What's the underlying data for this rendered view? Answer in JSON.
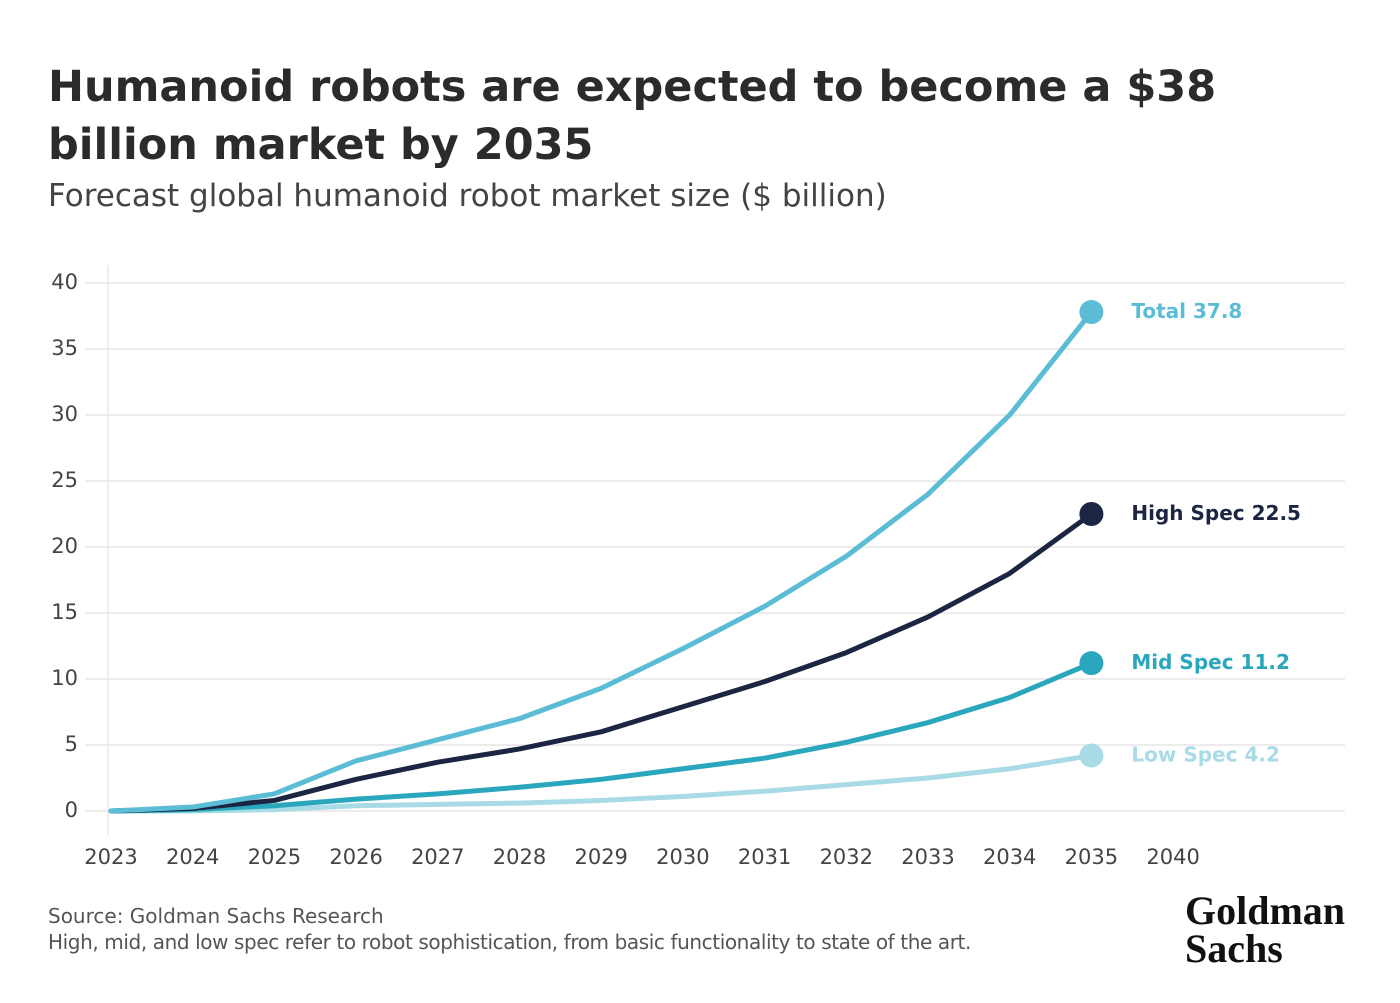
{
  "chart_data": {
    "type": "line",
    "title": "Humanoid robots are expected to become a $38 billion market by 2035",
    "subtitle": "Forecast global humanoid robot market size ($ billion)",
    "categories": [
      "2023",
      "2024",
      "2025",
      "2026",
      "2027",
      "2028",
      "2029",
      "2030",
      "2031",
      "2032",
      "2033",
      "2034",
      "2035",
      "2040"
    ],
    "series": [
      {
        "name": "Total",
        "color": "#5bbcd6",
        "values": [
          0,
          0.3,
          1.3,
          3.8,
          5.4,
          7.0,
          9.3,
          12.3,
          15.5,
          19.3,
          24.0,
          30.0,
          37.8,
          null
        ]
      },
      {
        "name": "High Spec",
        "color": "#1c2541",
        "values": [
          0,
          0.2,
          0.8,
          2.4,
          3.7,
          4.7,
          6.0,
          7.9,
          9.8,
          12.0,
          14.7,
          18.0,
          22.5,
          null
        ]
      },
      {
        "name": "Mid Spec",
        "color": "#2aa7bd",
        "values": [
          0,
          0.1,
          0.4,
          0.9,
          1.3,
          1.8,
          2.4,
          3.2,
          4.0,
          5.2,
          6.7,
          8.6,
          11.2,
          null
        ]
      },
      {
        "name": "Low Spec",
        "color": "#a8dbe6",
        "values": [
          0,
          0,
          0.1,
          0.4,
          0.5,
          0.6,
          0.8,
          1.1,
          1.5,
          2.0,
          2.5,
          3.2,
          4.2,
          null
        ]
      }
    ],
    "ylim": [
      0,
      40
    ],
    "yticks": [
      0,
      5,
      10,
      15,
      20,
      25,
      30,
      35,
      40
    ],
    "grid": true,
    "source": "Source: Goldman Sachs Research",
    "note": "High, mid, and low spec refer to robot sophistication, from basic functionality to state of the art.",
    "logo": "Goldman Sachs"
  }
}
